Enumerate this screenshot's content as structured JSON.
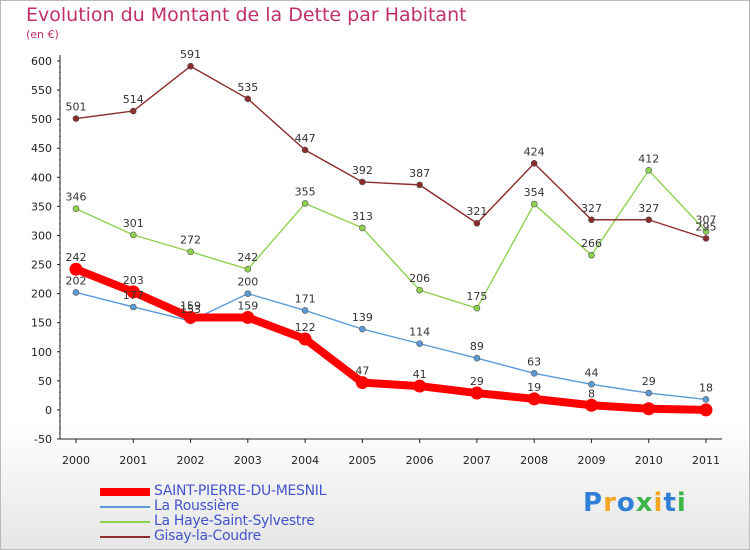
{
  "chart_data": {
    "type": "line",
    "title": "Evolution du Montant de la Dette par Habitant",
    "subtitle": "(en €)",
    "x": [
      "2000",
      "2001",
      "2002",
      "2003",
      "2004",
      "2005",
      "2006",
      "2007",
      "2008",
      "2009",
      "2010",
      "2011"
    ],
    "ylim": [
      -50,
      600
    ],
    "yticks": [
      -50,
      0,
      50,
      100,
      150,
      200,
      250,
      300,
      350,
      400,
      450,
      500,
      550,
      600
    ],
    "grid": false,
    "series": [
      {
        "name": "SAINT-PIERRE-DU-MESNIL",
        "color": "#ff0000",
        "width": "thick",
        "values": [
          242,
          203,
          159,
          159,
          122,
          47,
          41,
          29,
          19,
          8,
          2,
          0
        ],
        "labels": [
          "242",
          "203",
          "159",
          "159",
          "122",
          "47",
          "41",
          "29",
          "19",
          "8",
          "",
          ""
        ]
      },
      {
        "name": "La Roussière",
        "color": "#5b9bd5",
        "width": "thin",
        "values": [
          202,
          177,
          153,
          200,
          171,
          139,
          114,
          89,
          63,
          44,
          29,
          18
        ],
        "labels": [
          "202",
          "177",
          "153",
          "200",
          "171",
          "139",
          "114",
          "89",
          "63",
          "44",
          "29",
          "18"
        ]
      },
      {
        "name": "La Haye-Saint-Sylvestre",
        "color": "#8fd14f",
        "width": "thin",
        "values": [
          346,
          301,
          272,
          242,
          355,
          313,
          206,
          175,
          354,
          266,
          412,
          307
        ],
        "labels": [
          "346",
          "301",
          "272",
          "242",
          "355",
          "313",
          "206",
          "175",
          "354",
          "266",
          "412",
          "307"
        ]
      },
      {
        "name": "Gisay-la-Coudre",
        "color": "#8b2c2c",
        "width": "thin",
        "values": [
          501,
          514,
          591,
          535,
          447,
          392,
          387,
          321,
          424,
          327,
          327,
          295
        ],
        "labels": [
          "501",
          "514",
          "591",
          "535",
          "447",
          "392",
          "387",
          "321",
          "424",
          "327",
          "327",
          "295"
        ]
      }
    ]
  },
  "logo": {
    "letters": [
      "P",
      "r",
      "o",
      "x",
      "i",
      "t",
      "i"
    ],
    "colors": [
      "#2f7fd6",
      "#f5a623",
      "#2f7fd6",
      "#3db54a",
      "#f5a623",
      "#2f7fd6",
      "#3db54a"
    ]
  }
}
